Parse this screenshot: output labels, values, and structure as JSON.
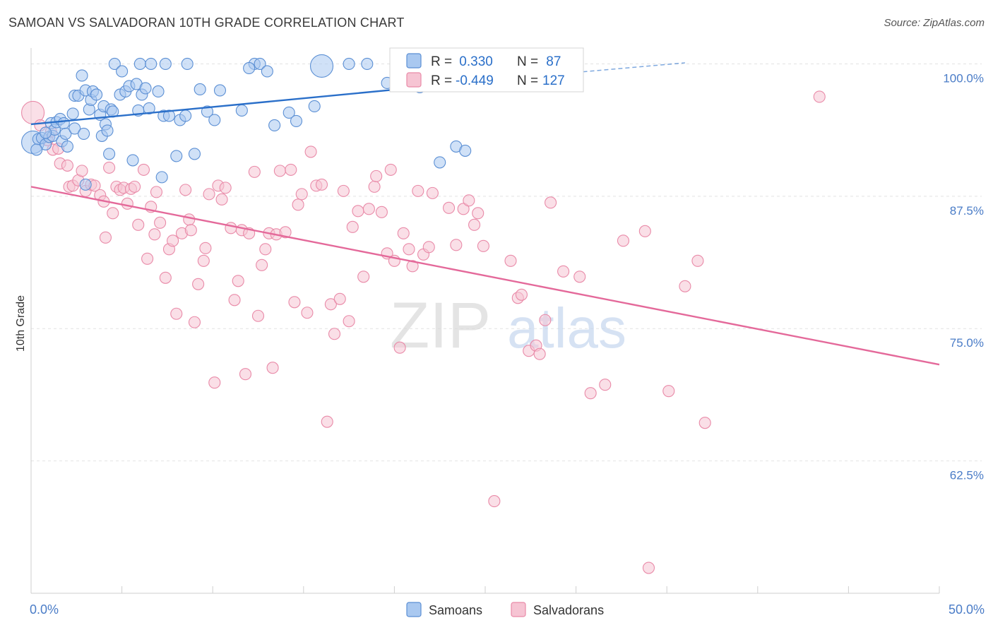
{
  "title": "SAMOAN VS SALVADORAN 10TH GRADE CORRELATION CHART",
  "source": "Source: ZipAtlas.com",
  "watermark": {
    "zip": "ZIP",
    "atlas": "atlas"
  },
  "colors": {
    "samoans_fill": "#a9c8f0",
    "samoans_stroke": "#5b8fd4",
    "samoans_line": "#2a6fc9",
    "salvadorans_fill": "#f6c4d3",
    "salvadorans_stroke": "#e98aa8",
    "salvadorans_line": "#e4699a",
    "tick_label": "#4a7cc7",
    "grid": "#e2e2e2"
  },
  "legend_box": {
    "rows": [
      {
        "r_label": "R = ",
        "r_value": " 0.330",
        "n_label": "N = ",
        "n_value": " 87"
      },
      {
        "r_label": "R = ",
        "r_value": "-0.449",
        "n_label": "N = ",
        "n_value": "127"
      }
    ]
  },
  "chart_data": {
    "type": "scatter",
    "title": "SAMOAN VS SALVADORAN 10TH GRADE CORRELATION CHART",
    "xlabel": "",
    "ylabel": "10th Grade",
    "xlim": [
      0,
      50
    ],
    "ylim": [
      50,
      101.5
    ],
    "x_tick_labels": [
      {
        "value": 0,
        "label": "0.0%"
      },
      {
        "value": 50,
        "label": "50.0%"
      }
    ],
    "y_tick_labels": [
      {
        "value": 100,
        "label": "100.0%"
      },
      {
        "value": 87.5,
        "label": "87.5%"
      },
      {
        "value": 75,
        "label": "75.0%"
      },
      {
        "value": 62.5,
        "label": "62.5%"
      }
    ],
    "grid": true,
    "legend_placement": "bottom-center",
    "series": [
      {
        "name": "Samoans",
        "r": 0.33,
        "n": 87,
        "trend": {
          "x": [
            0,
            30
          ],
          "y": [
            94.3,
            99.2
          ],
          "dashed_to": [
            36,
            100.1
          ]
        },
        "points": [
          [
            0.1,
            92.6
          ],
          [
            0.4,
            92.9
          ],
          [
            0.6,
            93.0
          ],
          [
            0.8,
            92.4
          ],
          [
            1.0,
            93.1
          ],
          [
            1.1,
            94.4
          ],
          [
            1.2,
            93.2
          ],
          [
            1.3,
            93.8
          ],
          [
            1.4,
            94.5
          ],
          [
            1.6,
            94.8
          ],
          [
            1.7,
            92.7
          ],
          [
            1.8,
            94.4
          ],
          [
            1.9,
            93.4
          ],
          [
            2.0,
            92.2
          ],
          [
            2.3,
            95.3
          ],
          [
            2.4,
            93.9
          ],
          [
            2.4,
            97.0
          ],
          [
            2.6,
            97.0
          ],
          [
            2.8,
            98.9
          ],
          [
            2.9,
            93.4
          ],
          [
            3.0,
            97.5
          ],
          [
            3.0,
            88.6
          ],
          [
            3.2,
            95.7
          ],
          [
            3.3,
            96.6
          ],
          [
            3.4,
            97.4
          ],
          [
            3.6,
            97.1
          ],
          [
            3.8,
            95.2
          ],
          [
            3.9,
            93.2
          ],
          [
            4.0,
            96.0
          ],
          [
            4.1,
            94.3
          ],
          [
            4.2,
            93.7
          ],
          [
            4.3,
            91.5
          ],
          [
            4.4,
            95.7
          ],
          [
            4.5,
            95.5
          ],
          [
            4.6,
            100.0
          ],
          [
            4.9,
            97.1
          ],
          [
            5.0,
            99.3
          ],
          [
            5.2,
            97.4
          ],
          [
            5.4,
            97.9
          ],
          [
            5.6,
            90.9
          ],
          [
            5.8,
            98.1
          ],
          [
            5.9,
            95.6
          ],
          [
            6.0,
            100.0
          ],
          [
            6.1,
            97.1
          ],
          [
            6.3,
            97.7
          ],
          [
            6.5,
            95.8
          ],
          [
            6.6,
            100.0
          ],
          [
            7.0,
            97.4
          ],
          [
            7.2,
            89.3
          ],
          [
            7.3,
            95.1
          ],
          [
            7.4,
            100.0
          ],
          [
            7.6,
            95.1
          ],
          [
            8.0,
            91.3
          ],
          [
            8.2,
            94.7
          ],
          [
            8.5,
            95.1
          ],
          [
            8.6,
            100.0
          ],
          [
            9.0,
            91.5
          ],
          [
            9.3,
            97.6
          ],
          [
            9.7,
            95.5
          ],
          [
            10.1,
            94.7
          ],
          [
            10.4,
            97.5
          ],
          [
            11.6,
            95.6
          ],
          [
            12.3,
            100.0
          ],
          [
            12.6,
            100.0
          ],
          [
            13.0,
            99.3
          ],
          [
            13.4,
            94.2
          ],
          [
            14.2,
            95.4
          ],
          [
            14.6,
            94.6
          ],
          [
            15.6,
            96.0
          ],
          [
            17.5,
            100.0
          ],
          [
            18.5,
            100.0
          ],
          [
            21.4,
            97.8
          ],
          [
            22.5,
            90.7
          ],
          [
            23.4,
            92.2
          ],
          [
            23.9,
            91.8
          ],
          [
            25.0,
            99.0
          ],
          [
            26.2,
            98.5
          ],
          [
            26.8,
            100.0
          ],
          [
            27.5,
            100.0
          ],
          [
            28.1,
            99.4
          ],
          [
            28.8,
            98.8
          ],
          [
            29.3,
            98.2
          ],
          [
            0.3,
            91.9
          ],
          [
            0.8,
            93.5
          ],
          [
            12.0,
            99.6
          ],
          [
            16.0,
            99.8
          ],
          [
            19.6,
            98.2
          ]
        ]
      },
      {
        "name": "Salvadorans",
        "r": -0.449,
        "n": 127,
        "trend": {
          "x": [
            0,
            50
          ],
          "y": [
            88.4,
            71.6
          ]
        },
        "points": [
          [
            0.1,
            95.4
          ],
          [
            0.5,
            94.2
          ],
          [
            0.9,
            92.8
          ],
          [
            1.1,
            93.6
          ],
          [
            1.2,
            91.9
          ],
          [
            1.5,
            92.0
          ],
          [
            1.6,
            90.6
          ],
          [
            2.0,
            90.4
          ],
          [
            2.1,
            88.4
          ],
          [
            2.3,
            88.5
          ],
          [
            2.6,
            89.0
          ],
          [
            2.8,
            89.9
          ],
          [
            3.0,
            88.0
          ],
          [
            3.3,
            88.6
          ],
          [
            3.5,
            88.5
          ],
          [
            3.8,
            87.6
          ],
          [
            4.0,
            87.0
          ],
          [
            4.1,
            83.6
          ],
          [
            4.3,
            90.2
          ],
          [
            4.5,
            85.9
          ],
          [
            4.7,
            88.4
          ],
          [
            4.9,
            88.1
          ],
          [
            5.1,
            88.3
          ],
          [
            5.3,
            86.8
          ],
          [
            5.5,
            88.2
          ],
          [
            5.7,
            88.4
          ],
          [
            5.9,
            84.8
          ],
          [
            6.2,
            90.0
          ],
          [
            6.4,
            81.6
          ],
          [
            6.6,
            86.5
          ],
          [
            6.8,
            83.9
          ],
          [
            6.9,
            87.9
          ],
          [
            7.1,
            85.0
          ],
          [
            7.4,
            79.8
          ],
          [
            7.6,
            82.5
          ],
          [
            7.8,
            83.3
          ],
          [
            8.0,
            76.4
          ],
          [
            8.3,
            84.0
          ],
          [
            8.5,
            88.1
          ],
          [
            8.7,
            85.3
          ],
          [
            8.8,
            84.3
          ],
          [
            9.0,
            75.6
          ],
          [
            9.2,
            79.2
          ],
          [
            9.5,
            81.4
          ],
          [
            9.6,
            82.6
          ],
          [
            9.8,
            87.7
          ],
          [
            10.1,
            69.9
          ],
          [
            10.3,
            88.5
          ],
          [
            10.5,
            87.2
          ],
          [
            10.7,
            88.3
          ],
          [
            11.0,
            84.5
          ],
          [
            11.2,
            77.7
          ],
          [
            11.4,
            79.5
          ],
          [
            11.6,
            84.3
          ],
          [
            11.8,
            70.7
          ],
          [
            12.0,
            84.0
          ],
          [
            12.3,
            89.8
          ],
          [
            12.5,
            76.2
          ],
          [
            12.7,
            81.0
          ],
          [
            12.9,
            82.5
          ],
          [
            13.1,
            84.0
          ],
          [
            13.3,
            71.3
          ],
          [
            13.5,
            83.9
          ],
          [
            13.7,
            89.9
          ],
          [
            14.0,
            84.1
          ],
          [
            14.3,
            90.0
          ],
          [
            14.5,
            77.5
          ],
          [
            14.7,
            86.7
          ],
          [
            14.9,
            87.7
          ],
          [
            15.2,
            76.5
          ],
          [
            15.4,
            91.7
          ],
          [
            15.7,
            88.5
          ],
          [
            16.0,
            88.6
          ],
          [
            16.3,
            66.2
          ],
          [
            16.5,
            77.3
          ],
          [
            16.7,
            74.5
          ],
          [
            17.0,
            77.8
          ],
          [
            17.2,
            88.0
          ],
          [
            17.5,
            75.7
          ],
          [
            17.7,
            84.6
          ],
          [
            18.0,
            86.1
          ],
          [
            18.3,
            79.9
          ],
          [
            18.6,
            86.3
          ],
          [
            18.9,
            88.4
          ],
          [
            19.0,
            89.4
          ],
          [
            19.3,
            86.0
          ],
          [
            19.6,
            82.1
          ],
          [
            19.8,
            90.0
          ],
          [
            20.0,
            81.4
          ],
          [
            20.3,
            73.2
          ],
          [
            20.5,
            84.0
          ],
          [
            20.8,
            82.5
          ],
          [
            21.0,
            80.9
          ],
          [
            21.3,
            88.0
          ],
          [
            21.6,
            82.0
          ],
          [
            21.9,
            82.7
          ],
          [
            22.1,
            87.8
          ],
          [
            23.0,
            86.4
          ],
          [
            23.4,
            82.9
          ],
          [
            23.8,
            86.3
          ],
          [
            24.1,
            87.1
          ],
          [
            24.4,
            84.8
          ],
          [
            24.6,
            85.9
          ],
          [
            24.9,
            82.8
          ],
          [
            25.5,
            58.7
          ],
          [
            26.4,
            81.4
          ],
          [
            26.8,
            77.9
          ],
          [
            27.0,
            78.2
          ],
          [
            27.4,
            72.9
          ],
          [
            27.8,
            73.4
          ],
          [
            28.0,
            72.6
          ],
          [
            28.3,
            75.8
          ],
          [
            28.6,
            86.9
          ],
          [
            29.3,
            80.4
          ],
          [
            30.2,
            79.9
          ],
          [
            30.8,
            68.9
          ],
          [
            31.6,
            69.7
          ],
          [
            32.6,
            83.3
          ],
          [
            33.8,
            84.2
          ],
          [
            34.0,
            52.4
          ],
          [
            35.1,
            69.1
          ],
          [
            36.0,
            79.0
          ],
          [
            36.7,
            81.4
          ],
          [
            37.1,
            66.1
          ],
          [
            43.4,
            96.9
          ]
        ]
      }
    ]
  }
}
